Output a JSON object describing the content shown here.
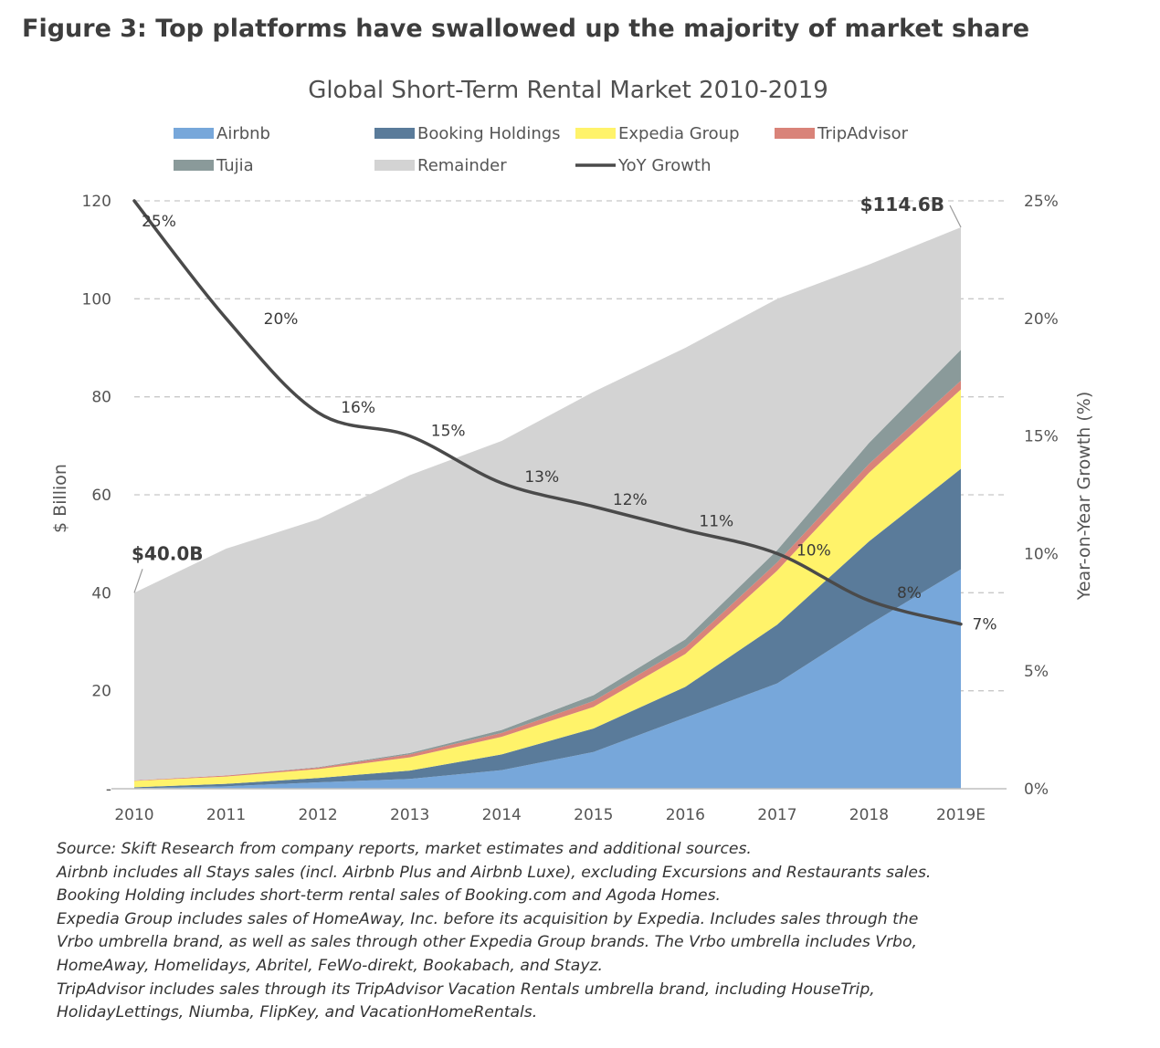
{
  "figure_heading": "Figure 3: Top platforms have swallowed up the majority of market share",
  "colors": {
    "airbnb": "#77a7da",
    "booking": "#5a7b9a",
    "expedia": "#fff36a",
    "tripadvisor": "#d98379",
    "tujia": "#8a9a9a",
    "remainder": "#d3d3d3",
    "yoy": "#4a4a4a",
    "grid": "#c8c8c8",
    "text": "#555555"
  },
  "chart_data": {
    "type": "area",
    "stacked": true,
    "title": "Global Short-Term Rental Market 2010-2019",
    "ylabel": "$ Billion",
    "y2label": "Year-on-Year Growth (%)",
    "categories": [
      "2010",
      "2011",
      "2012",
      "2013",
      "2014",
      "2015",
      "2016",
      "2017",
      "2018",
      "2019E"
    ],
    "ylim": [
      0,
      120
    ],
    "yticks": [
      0,
      20,
      40,
      60,
      80,
      100,
      120
    ],
    "ytick_labels": [
      "-",
      "20",
      "40",
      "60",
      "80",
      "100",
      "120"
    ],
    "y2lim": [
      0,
      25
    ],
    "y2ticks": [
      0,
      5,
      10,
      15,
      20,
      25
    ],
    "y2tick_labels": [
      "0%",
      "5%",
      "10%",
      "15%",
      "20%",
      "25%"
    ],
    "series": [
      {
        "name": "Airbnb",
        "key": "airbnb",
        "values": [
          0.1,
          0.5,
          1.3,
          2.0,
          3.8,
          7.5,
          14.5,
          21.5,
          33.5,
          44.8
        ]
      },
      {
        "name": "Booking Holdings",
        "key": "booking",
        "values": [
          0.2,
          0.5,
          0.9,
          1.7,
          3.2,
          4.8,
          6.3,
          12.0,
          17.0,
          20.5
        ]
      },
      {
        "name": "Expedia Group",
        "key": "expedia",
        "values": [
          1.3,
          1.5,
          1.8,
          2.7,
          3.6,
          4.4,
          6.7,
          11.0,
          14.0,
          16.2
        ]
      },
      {
        "name": "TripAdvisor",
        "key": "tripadvisor",
        "values": [
          0.1,
          0.2,
          0.3,
          0.6,
          0.8,
          1.2,
          1.4,
          1.7,
          1.8,
          1.8
        ]
      },
      {
        "name": "Tujia",
        "key": "tujia",
        "values": [
          0.0,
          0.0,
          0.1,
          0.3,
          0.6,
          1.2,
          1.6,
          2.5,
          4.3,
          6.3
        ]
      },
      {
        "name": "Remainder",
        "key": "remainder",
        "values": [
          38.3,
          46.3,
          50.6,
          56.7,
          59.0,
          61.9,
          59.5,
          51.3,
          36.4,
          25.0
        ]
      }
    ],
    "line_series": {
      "name": "YoY Growth",
      "axis": "right",
      "values": [
        25,
        20,
        16,
        15,
        13,
        12,
        11,
        10,
        8,
        7
      ],
      "labels": [
        "25%",
        "20%",
        "16%",
        "15%",
        "13%",
        "12%",
        "11%",
        "10%",
        "8%",
        "7%"
      ]
    },
    "legend": {
      "placement": "top",
      "items": [
        {
          "label": "Airbnb",
          "key": "airbnb",
          "kind": "area"
        },
        {
          "label": "Booking Holdings",
          "key": "booking",
          "kind": "area"
        },
        {
          "label": "Expedia Group",
          "key": "expedia",
          "kind": "area"
        },
        {
          "label": "TripAdvisor",
          "key": "tripadvisor",
          "kind": "area"
        },
        {
          "label": "Tujia",
          "key": "tujia",
          "kind": "area"
        },
        {
          "label": "Remainder",
          "key": "remainder",
          "kind": "area"
        },
        {
          "label": "YoY Growth",
          "key": "yoy",
          "kind": "line"
        }
      ]
    },
    "annotations": [
      {
        "text": "$40.0B",
        "category": "2010",
        "value": 40.0
      },
      {
        "text": "$114.6B",
        "category": "2019E",
        "value": 114.6
      }
    ]
  },
  "notes": [
    "Source: Skift Research from company reports, market estimates and additional sources.",
    "Airbnb includes all Stays sales (incl. Airbnb Plus and Airbnb Luxe), excluding Excursions and Restaurants sales.",
    "Booking Holding includes short-term rental sales of Booking.com and Agoda Homes.",
    "Expedia Group includes sales of HomeAway, Inc. before its acquisition by Expedia. Includes sales through the",
    "Vrbo umbrella brand, as well as sales through other Expedia Group brands. The Vrbo umbrella includes Vrbo,",
    "HomeAway, Homelidays, Abritel, FeWo-direkt, Bookabach, and Stayz.",
    "TripAdvisor includes sales through its TripAdvisor Vacation Rentals umbrella brand, including HouseTrip,",
    "HolidayLettings, Niumba, FlipKey, and VacationHomeRentals."
  ]
}
